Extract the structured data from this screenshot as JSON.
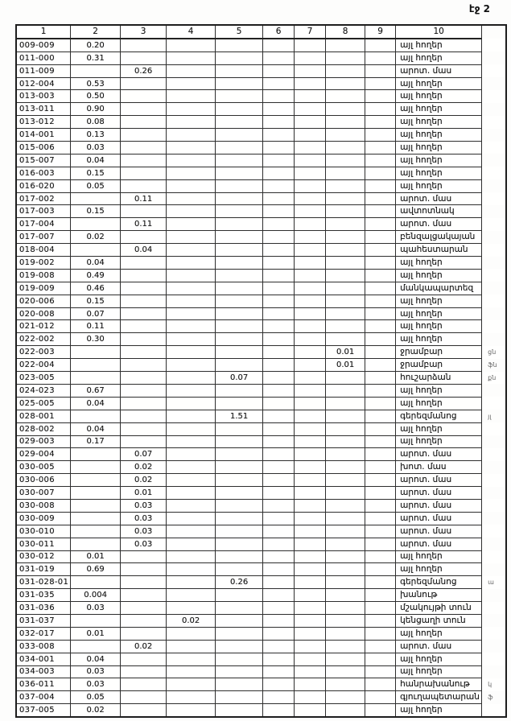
{
  "page": {
    "corner_label": "էջ 2"
  },
  "table": {
    "headers": [
      "1",
      "2",
      "3",
      "4",
      "5",
      "6",
      "7",
      "8",
      "9",
      "10"
    ],
    "value_columns": [
      "2",
      "3",
      "4",
      "5",
      "6",
      "7",
      "8",
      "9"
    ],
    "rows": [
      {
        "code": "009-009",
        "vals": [
          "0.20",
          "",
          "",
          "",
          "",
          "",
          "",
          ""
        ],
        "type": "այլ հողեր",
        "note": ""
      },
      {
        "code": "011-000",
        "vals": [
          "0.31",
          "",
          "",
          "",
          "",
          "",
          "",
          ""
        ],
        "type": "այլ հողեր",
        "note": ""
      },
      {
        "code": "011-009",
        "vals": [
          "",
          "0.26",
          "",
          "",
          "",
          "",
          "",
          ""
        ],
        "type": "արոտ. մաս",
        "note": ""
      },
      {
        "code": "012-004",
        "vals": [
          "0.53",
          "",
          "",
          "",
          "",
          "",
          "",
          ""
        ],
        "type": "այլ հողեր",
        "note": ""
      },
      {
        "code": "013-003",
        "vals": [
          "0.50",
          "",
          "",
          "",
          "",
          "",
          "",
          ""
        ],
        "type": "այլ հողեր",
        "note": ""
      },
      {
        "code": "013-011",
        "vals": [
          "0.90",
          "",
          "",
          "",
          "",
          "",
          "",
          ""
        ],
        "type": "այլ հողեր",
        "note": ""
      },
      {
        "code": "013-012",
        "vals": [
          "0.08",
          "",
          "",
          "",
          "",
          "",
          "",
          ""
        ],
        "type": "այլ հողեր",
        "note": ""
      },
      {
        "code": "014-001",
        "vals": [
          "0.13",
          "",
          "",
          "",
          "",
          "",
          "",
          ""
        ],
        "type": "այլ հողեր",
        "note": ""
      },
      {
        "code": "015-006",
        "vals": [
          "0.03",
          "",
          "",
          "",
          "",
          "",
          "",
          ""
        ],
        "type": "այլ հողեր",
        "note": ""
      },
      {
        "code": "015-007",
        "vals": [
          "0.04",
          "",
          "",
          "",
          "",
          "",
          "",
          ""
        ],
        "type": "այլ հողեր",
        "note": ""
      },
      {
        "code": "016-003",
        "vals": [
          "0.15",
          "",
          "",
          "",
          "",
          "",
          "",
          ""
        ],
        "type": "այլ հողեր",
        "note": ""
      },
      {
        "code": "016-020",
        "vals": [
          "0.05",
          "",
          "",
          "",
          "",
          "",
          "",
          ""
        ],
        "type": "այլ հողեր",
        "note": ""
      },
      {
        "code": "017-002",
        "vals": [
          "",
          "0.11",
          "",
          "",
          "",
          "",
          "",
          ""
        ],
        "type": "արոտ. մաս",
        "note": ""
      },
      {
        "code": "017-003",
        "vals": [
          "0.15",
          "",
          "",
          "",
          "",
          "",
          "",
          ""
        ],
        "type": "ավտոտնակ",
        "note": ""
      },
      {
        "code": "017-004",
        "vals": [
          "",
          "0.11",
          "",
          "",
          "",
          "",
          "",
          ""
        ],
        "type": "արոտ. մաս",
        "note": ""
      },
      {
        "code": "017-007",
        "vals": [
          "0.02",
          "",
          "",
          "",
          "",
          "",
          "",
          ""
        ],
        "type": "բենզալցակայան",
        "note": ""
      },
      {
        "code": "018-004",
        "vals": [
          "",
          "0.04",
          "",
          "",
          "",
          "",
          "",
          ""
        ],
        "type": "պահեստարան",
        "note": ""
      },
      {
        "code": "019-002",
        "vals": [
          "0.04",
          "",
          "",
          "",
          "",
          "",
          "",
          ""
        ],
        "type": "այլ հողեր",
        "note": ""
      },
      {
        "code": "019-008",
        "vals": [
          "0.49",
          "",
          "",
          "",
          "",
          "",
          "",
          ""
        ],
        "type": "այլ հողեր",
        "note": ""
      },
      {
        "code": "019-009",
        "vals": [
          "0.46",
          "",
          "",
          "",
          "",
          "",
          "",
          ""
        ],
        "type": "մանկապարտեզ",
        "note": ""
      },
      {
        "code": "020-006",
        "vals": [
          "0.15",
          "",
          "",
          "",
          "",
          "",
          "",
          ""
        ],
        "type": "այլ հողեր",
        "note": ""
      },
      {
        "code": "020-008",
        "vals": [
          "0.07",
          "",
          "",
          "",
          "",
          "",
          "",
          ""
        ],
        "type": "այլ հողեր",
        "note": ""
      },
      {
        "code": "021-012",
        "vals": [
          "0.11",
          "",
          "",
          "",
          "",
          "",
          "",
          ""
        ],
        "type": "այլ հողեր",
        "note": ""
      },
      {
        "code": "022-002",
        "vals": [
          "0.30",
          "",
          "",
          "",
          "",
          "",
          "",
          ""
        ],
        "type": "այլ հողեր",
        "note": ""
      },
      {
        "code": "022-003",
        "vals": [
          "",
          "",
          "",
          "",
          "",
          "",
          "0.01",
          ""
        ],
        "type": "ջրամբար",
        "note": "ցն"
      },
      {
        "code": "022-004",
        "vals": [
          "",
          "",
          "",
          "",
          "",
          "",
          "0.01",
          ""
        ],
        "type": "ջրամբար",
        "note": "ֆն"
      },
      {
        "code": "023-005",
        "vals": [
          "",
          "",
          "",
          "0.07",
          "",
          "",
          "",
          ""
        ],
        "type": "հուշարձան",
        "note": "քն"
      },
      {
        "code": "024-023",
        "vals": [
          "0.67",
          "",
          "",
          "",
          "",
          "",
          "",
          ""
        ],
        "type": "այլ հողեր",
        "note": ""
      },
      {
        "code": "025-005",
        "vals": [
          "0.04",
          "",
          "",
          "",
          "",
          "",
          "",
          ""
        ],
        "type": "այլ հողեր",
        "note": ""
      },
      {
        "code": "028-001",
        "vals": [
          "",
          "",
          "",
          "1.51",
          "",
          "",
          "",
          ""
        ],
        "type": "գերեզմանոց",
        "note": "յլ"
      },
      {
        "code": "028-002",
        "vals": [
          "0.04",
          "",
          "",
          "",
          "",
          "",
          "",
          ""
        ],
        "type": "այլ հողեր",
        "note": ""
      },
      {
        "code": "029-003",
        "vals": [
          "0.17",
          "",
          "",
          "",
          "",
          "",
          "",
          ""
        ],
        "type": "այլ հողեր",
        "note": ""
      },
      {
        "code": "029-004",
        "vals": [
          "",
          "0.07",
          "",
          "",
          "",
          "",
          "",
          ""
        ],
        "type": "արոտ. մաս",
        "note": ""
      },
      {
        "code": "030-005",
        "vals": [
          "",
          "0.02",
          "",
          "",
          "",
          "",
          "",
          ""
        ],
        "type": "խոտ. մաս",
        "note": ""
      },
      {
        "code": "030-006",
        "vals": [
          "",
          "0.02",
          "",
          "",
          "",
          "",
          "",
          ""
        ],
        "type": "արոտ. մաս",
        "note": ""
      },
      {
        "code": "030-007",
        "vals": [
          "",
          "0.01",
          "",
          "",
          "",
          "",
          "",
          ""
        ],
        "type": "արոտ. մաս",
        "note": ""
      },
      {
        "code": "030-008",
        "vals": [
          "",
          "0.03",
          "",
          "",
          "",
          "",
          "",
          ""
        ],
        "type": "արոտ. մաս",
        "note": ""
      },
      {
        "code": "030-009",
        "vals": [
          "",
          "0.03",
          "",
          "",
          "",
          "",
          "",
          ""
        ],
        "type": "արոտ. մաս",
        "note": ""
      },
      {
        "code": "030-010",
        "vals": [
          "",
          "0.03",
          "",
          "",
          "",
          "",
          "",
          ""
        ],
        "type": "արոտ. մաս",
        "note": ""
      },
      {
        "code": "030-011",
        "vals": [
          "",
          "0.03",
          "",
          "",
          "",
          "",
          "",
          ""
        ],
        "type": "արոտ. մաս",
        "note": ""
      },
      {
        "code": "030-012",
        "vals": [
          "0.01",
          "",
          "",
          "",
          "",
          "",
          "",
          ""
        ],
        "type": "այլ հողեր",
        "note": ""
      },
      {
        "code": "031-019",
        "vals": [
          "0.69",
          "",
          "",
          "",
          "",
          "",
          "",
          ""
        ],
        "type": "այլ հողեր",
        "note": ""
      },
      {
        "code": "031-028-01",
        "vals": [
          "",
          "",
          "",
          "0.26",
          "",
          "",
          "",
          ""
        ],
        "type": "գերեզմանոց",
        "note": "ա"
      },
      {
        "code": "031-035",
        "vals": [
          "0.004",
          "",
          "",
          "",
          "",
          "",
          "",
          ""
        ],
        "type": "խանութ",
        "note": ""
      },
      {
        "code": "031-036",
        "vals": [
          "0.03",
          "",
          "",
          "",
          "",
          "",
          "",
          ""
        ],
        "type": "մշակույթի տուն",
        "note": ""
      },
      {
        "code": "031-037",
        "vals": [
          "",
          "",
          "0.02",
          "",
          "",
          "",
          "",
          ""
        ],
        "type": "կենցաղի տուն",
        "note": ""
      },
      {
        "code": "032-017",
        "vals": [
          "0.01",
          "",
          "",
          "",
          "",
          "",
          "",
          ""
        ],
        "type": "այլ հողեր",
        "note": ""
      },
      {
        "code": "033-008",
        "vals": [
          "",
          "0.02",
          "",
          "",
          "",
          "",
          "",
          ""
        ],
        "type": "արոտ. մաս",
        "note": ""
      },
      {
        "code": "034-001",
        "vals": [
          "0.04",
          "",
          "",
          "",
          "",
          "",
          "",
          ""
        ],
        "type": "այլ հողեր",
        "note": ""
      },
      {
        "code": "034-003",
        "vals": [
          "0.03",
          "",
          "",
          "",
          "",
          "",
          "",
          ""
        ],
        "type": "այլ հողեր",
        "note": ""
      },
      {
        "code": "036-011",
        "vals": [
          "0.03",
          "",
          "",
          "",
          "",
          "",
          "",
          ""
        ],
        "type": "հանրախանութ",
        "note": "կ"
      },
      {
        "code": "037-004",
        "vals": [
          "0.05",
          "",
          "",
          "",
          "",
          "",
          "",
          ""
        ],
        "type": "գյուղապետարան",
        "note": "ֆ"
      },
      {
        "code": "037-005",
        "vals": [
          "0.02",
          "",
          "",
          "",
          "",
          "",
          "",
          ""
        ],
        "type": "այլ հողեր",
        "note": ""
      }
    ]
  }
}
